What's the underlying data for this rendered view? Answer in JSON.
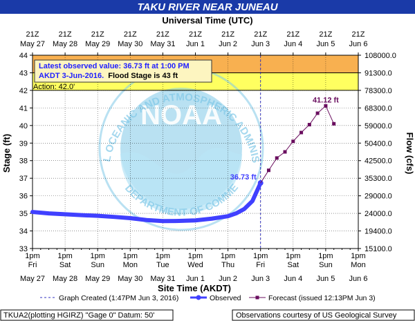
{
  "header": {
    "title": "TAKU RIVER NEAR JUNEAU",
    "top_axis_title": "Universal Time (UTC)",
    "bottom_axis_title": "Site Time (AKDT)",
    "left_axis_title": "Stage (ft)",
    "right_axis_title": "Flow (cfs)"
  },
  "watermark": {
    "text_top": "NATIONAL OCEANIC AND ATMOSPHERIC ADMINISTRATION",
    "text_bottom": "U.S. DEPARTMENT OF COMMERCE",
    "center": "NOAA"
  },
  "info_box": {
    "line1": "Latest observed value: 36.73 ft at 1:00 PM",
    "line2_blue": "AKDT 3-Jun-2016.",
    "line2_black": "  Flood Stage is 43 ft"
  },
  "action_label": "Action: 42.0'",
  "footer": {
    "left": "TKUA2(plotting HGIRZ) \"Gage 0\" Datum: 50'",
    "right": "Observations courtesy of US Geological Survey"
  },
  "colors": {
    "flood": "#f8b050",
    "action": "#ffff60",
    "observed": "#4040ff",
    "forecast": "#6a0e5f",
    "title_bar": "#1a3aa8",
    "watermark": "#7fc8e8"
  },
  "chart_data": {
    "type": "line",
    "title": "TAKU RIVER NEAR JUNEAU",
    "xlabel": "Site Time (AKDT)",
    "ylabel": "Stage (ft)",
    "ylabel_right": "Flow (cfs)",
    "ylim": [
      33,
      44
    ],
    "xlim_days": [
      0,
      10
    ],
    "grid": true,
    "x_ticks_bottom": [
      {
        "day": 0,
        "time": "1pm",
        "dow": "Fri",
        "date": "May 27"
      },
      {
        "day": 1,
        "time": "1pm",
        "dow": "Sat",
        "date": "May 28"
      },
      {
        "day": 2,
        "time": "1pm",
        "dow": "Sun",
        "date": "May 29"
      },
      {
        "day": 3,
        "time": "1pm",
        "dow": "Mon",
        "date": "May 30"
      },
      {
        "day": 4,
        "time": "1pm",
        "dow": "Tue",
        "date": "May 31"
      },
      {
        "day": 5,
        "time": "1pm",
        "dow": "Wed",
        "date": "Jun 1"
      },
      {
        "day": 6,
        "time": "1pm",
        "dow": "Thu",
        "date": "Jun 2"
      },
      {
        "day": 7,
        "time": "1pm",
        "dow": "Fri",
        "date": "Jun 3"
      },
      {
        "day": 8,
        "time": "1pm",
        "dow": "Sat",
        "date": "Jun 4"
      },
      {
        "day": 9,
        "time": "1pm",
        "dow": "Sun",
        "date": "Jun 5"
      },
      {
        "day": 10,
        "time": "1pm",
        "dow": "Mon",
        "date": "Jun 6"
      }
    ],
    "x_ticks_top": [
      {
        "day": 0,
        "time": "21Z",
        "date": "May 27"
      },
      {
        "day": 1,
        "time": "21Z",
        "date": "May 28"
      },
      {
        "day": 2,
        "time": "21Z",
        "date": "May 29"
      },
      {
        "day": 3,
        "time": "21Z",
        "date": "May 30"
      },
      {
        "day": 4,
        "time": "21Z",
        "date": "May 31"
      },
      {
        "day": 5,
        "time": "21Z",
        "date": "Jun 1"
      },
      {
        "day": 6,
        "time": "21Z",
        "date": "Jun 2"
      },
      {
        "day": 7,
        "time": "21Z",
        "date": "Jun 3"
      },
      {
        "day": 8,
        "time": "21Z",
        "date": "Jun 4"
      },
      {
        "day": 9,
        "time": "21Z",
        "date": "Jun 5"
      },
      {
        "day": 10,
        "time": "21Z",
        "date": "Jun 6"
      }
    ],
    "y_ticks": [
      33,
      34,
      35,
      36,
      37,
      38,
      39,
      40,
      41,
      42,
      43,
      44
    ],
    "y_right_ticks": [
      {
        "stage": 33,
        "label": "15100.0"
      },
      {
        "stage": 34,
        "label": "19400.0"
      },
      {
        "stage": 35,
        "label": "24000.0"
      },
      {
        "stage": 36,
        "label": "29000.0"
      },
      {
        "stage": 37,
        "label": "35300.0"
      },
      {
        "stage": 38,
        "label": "42500.0"
      },
      {
        "stage": 39,
        "label": "50400.0"
      },
      {
        "stage": 40,
        "label": "59000.0"
      },
      {
        "stage": 41,
        "label": "68300.0"
      },
      {
        "stage": 42,
        "label": "78300.0"
      },
      {
        "stage": 43,
        "label": "91300.0"
      },
      {
        "stage": 44,
        "label": "108000.0"
      }
    ],
    "flood_stage": 43,
    "action_stage": 42,
    "graph_created_day": 7.0,
    "series": [
      {
        "name": "Observed",
        "points": [
          [
            0.0,
            35.08
          ],
          [
            0.5,
            35.0
          ],
          [
            1.0,
            34.95
          ],
          [
            1.5,
            34.9
          ],
          [
            2.0,
            34.86
          ],
          [
            2.5,
            34.8
          ],
          [
            3.0,
            34.73
          ],
          [
            3.5,
            34.62
          ],
          [
            4.0,
            34.56
          ],
          [
            4.5,
            34.57
          ],
          [
            5.0,
            34.6
          ],
          [
            5.5,
            34.7
          ],
          [
            6.0,
            34.84
          ],
          [
            6.25,
            35.0
          ],
          [
            6.5,
            35.25
          ],
          [
            6.75,
            35.7
          ],
          [
            7.0,
            36.73
          ]
        ],
        "label": "36.73 ft"
      },
      {
        "name": "Forecast (issued 12:13PM Jun 3)",
        "points": [
          [
            7.0,
            36.73
          ],
          [
            7.25,
            37.45
          ],
          [
            7.5,
            38.15
          ],
          [
            7.75,
            38.5
          ],
          [
            8.0,
            39.1
          ],
          [
            8.25,
            39.6
          ],
          [
            8.5,
            40.05
          ],
          [
            8.75,
            40.7
          ],
          [
            9.0,
            41.12
          ],
          [
            9.25,
            40.1
          ]
        ],
        "label": "41.12 ft"
      }
    ],
    "legend": [
      {
        "label": "Graph Created (1:47PM Jun 3, 2016)",
        "style": "dashed"
      },
      {
        "label": "Observed",
        "style": "observed"
      },
      {
        "label": "Forecast (issued 12:13PM Jun 3)",
        "style": "forecast"
      }
    ]
  }
}
